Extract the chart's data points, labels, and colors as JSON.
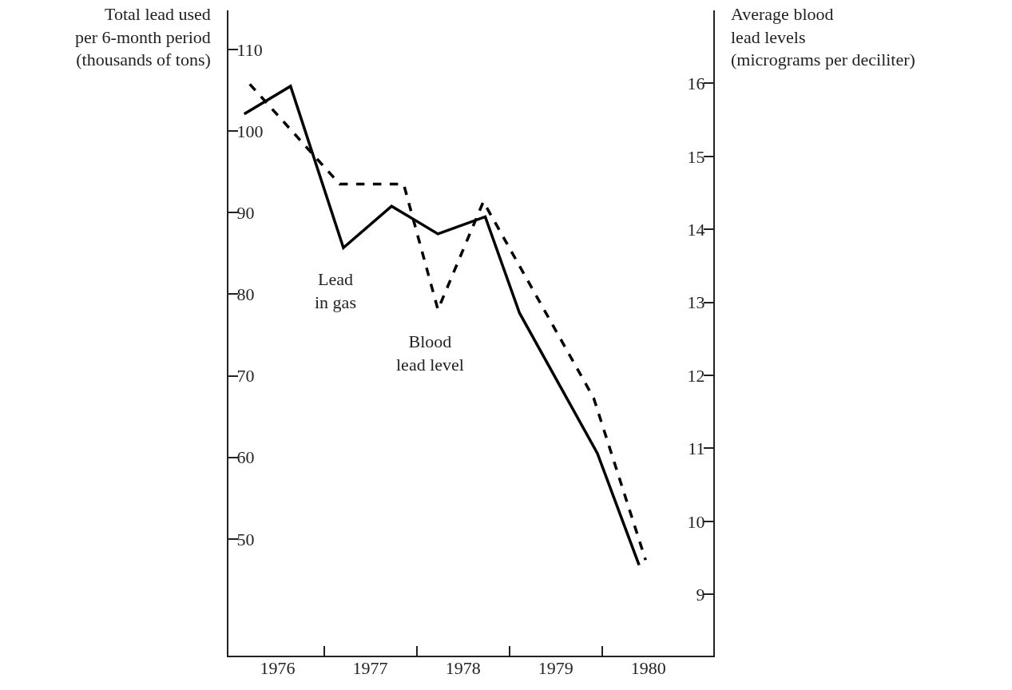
{
  "chart_data": {
    "type": "line",
    "ylabel": "Total lead used\nper 6-month period\n(thousands of tons)",
    "y2label": "Average blood\nlead levels\n(micrograms per deciliter)",
    "series": [
      {
        "name": "Lead\nin gas",
        "color": "#000000",
        "line_style": "solid",
        "x": [
          1976.14,
          1976.64,
          1977.21,
          1977.73,
          1978.23,
          1978.74,
          1979.11,
          1979.95,
          1980.4
        ],
        "values": [
          102.1,
          105.5,
          85.7,
          90.8,
          87.4,
          89.5,
          77.7,
          60.5,
          46.8
        ]
      },
      {
        "name": "Blood\nlead level",
        "color": "#000000",
        "line_style": "dashed",
        "axis": "y2",
        "x": [
          1976.2,
          1977.17,
          1977.86,
          1978.23,
          1978.72,
          1979.91,
          1980.47
        ],
        "values": [
          15.99,
          14.62,
          14.62,
          12.9,
          14.38,
          11.69,
          9.47
        ]
      }
    ],
    "xlim": [
      1975.97,
      1981.2
    ],
    "xticks": [
      {
        "value": 1976.5,
        "label": "1976"
      },
      {
        "value": 1977,
        "label": null
      },
      {
        "value": 1977.5,
        "label": "1977"
      },
      {
        "value": 1978,
        "label": null
      },
      {
        "value": 1978.5,
        "label": "1978"
      },
      {
        "value": 1979,
        "label": null
      },
      {
        "value": 1979.5,
        "label": "1979"
      },
      {
        "value": 1980,
        "label": null
      },
      {
        "value": 1980.5,
        "label": "1980"
      }
    ],
    "ylim": [
      35.7,
      114.8
    ],
    "yticks": [
      50,
      60,
      70,
      80,
      90,
      100,
      110
    ],
    "y2lim": [
      8.16,
      17.0
    ],
    "y2ticks": [
      9,
      10,
      11,
      12,
      13,
      14,
      15,
      16
    ],
    "legend": false,
    "marker": "none"
  }
}
